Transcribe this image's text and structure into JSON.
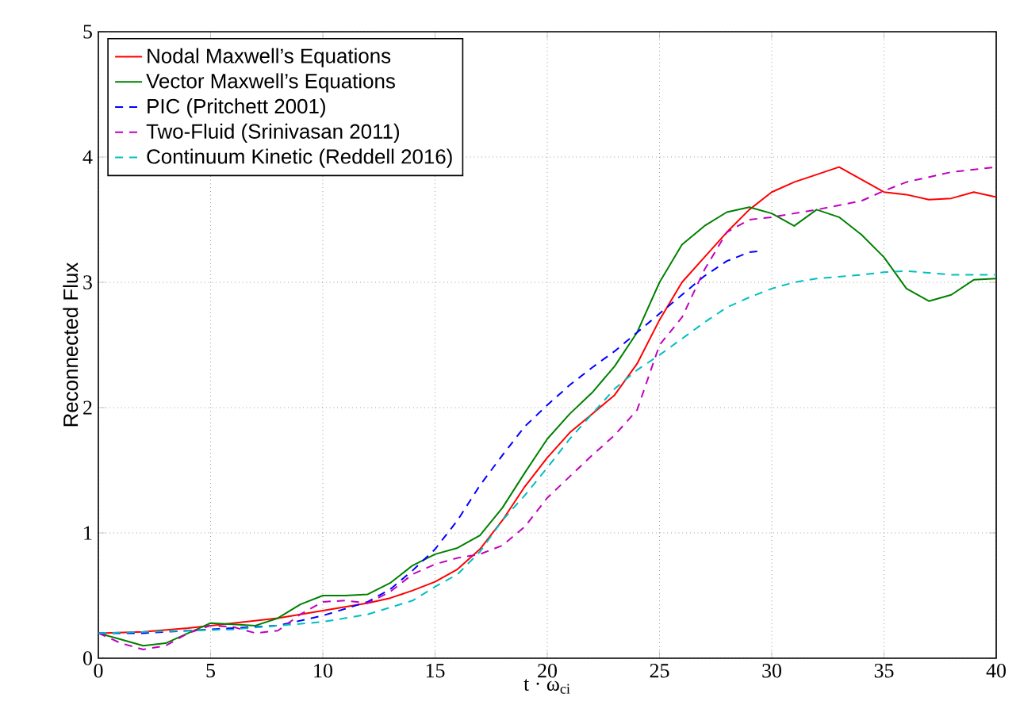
{
  "chart_data": {
    "type": "line",
    "xlabel": "t · ω$_{ci}$",
    "ylabel": "Reconnected Flux",
    "xlim": [
      0,
      40
    ],
    "ylim": [
      0,
      5
    ],
    "xticks": [
      0,
      5,
      10,
      15,
      20,
      25,
      30,
      35,
      40
    ],
    "yticks": [
      0,
      1,
      2,
      3,
      4,
      5
    ],
    "grid": true,
    "legend": "top left",
    "marker": "none",
    "series": [
      {
        "name": "Nodal Maxwell’s Equations",
        "color": "#ff0000",
        "line_style": "solid",
        "x": [
          0,
          2,
          4,
          6,
          8,
          10,
          12,
          13,
          14,
          15,
          16,
          17,
          18,
          19,
          20,
          21,
          22,
          23,
          24,
          25,
          26,
          27,
          28,
          29,
          30,
          31,
          32,
          33,
          34,
          35,
          36,
          37,
          38,
          39,
          40
        ],
        "values": [
          0.2,
          0.21,
          0.24,
          0.28,
          0.32,
          0.38,
          0.44,
          0.48,
          0.54,
          0.61,
          0.71,
          0.87,
          1.1,
          1.37,
          1.6,
          1.8,
          1.95,
          2.1,
          2.35,
          2.7,
          3.0,
          3.2,
          3.4,
          3.58,
          3.72,
          3.8,
          3.86,
          3.92,
          3.82,
          3.72,
          3.7,
          3.66,
          3.67,
          3.72,
          3.68
        ]
      },
      {
        "name": "Vector Maxwell’s Equations",
        "color": "#008000",
        "line_style": "solid",
        "x": [
          0,
          1,
          2,
          3,
          4,
          5,
          6,
          7,
          8,
          9,
          10,
          11,
          12,
          13,
          14,
          15,
          16,
          17,
          18,
          19,
          20,
          21,
          22,
          23,
          24,
          25,
          26,
          27,
          28,
          29,
          30,
          31,
          32,
          33,
          34,
          35,
          36,
          37,
          38,
          39,
          40
        ],
        "values": [
          0.2,
          0.15,
          0.1,
          0.12,
          0.2,
          0.28,
          0.27,
          0.26,
          0.32,
          0.43,
          0.5,
          0.5,
          0.51,
          0.6,
          0.74,
          0.83,
          0.88,
          0.98,
          1.2,
          1.48,
          1.75,
          1.95,
          2.12,
          2.33,
          2.6,
          3.0,
          3.3,
          3.45,
          3.56,
          3.6,
          3.55,
          3.45,
          3.58,
          3.52,
          3.38,
          3.2,
          2.95,
          2.85,
          2.9,
          3.02,
          3.03
        ]
      },
      {
        "name": "PIC (Pritchett 2001)",
        "color": "#0000ff",
        "line_style": "dashed",
        "x": [
          0,
          2,
          4,
          6,
          8,
          10,
          12,
          13,
          14,
          15,
          16,
          17,
          18,
          19,
          20,
          21,
          22,
          23,
          24,
          25,
          26,
          27,
          28,
          29,
          29.5
        ],
        "values": [
          0.2,
          0.2,
          0.22,
          0.24,
          0.26,
          0.34,
          0.45,
          0.55,
          0.7,
          0.87,
          1.1,
          1.38,
          1.62,
          1.85,
          2.02,
          2.18,
          2.32,
          2.45,
          2.6,
          2.75,
          2.9,
          3.05,
          3.17,
          3.24,
          3.25
        ]
      },
      {
        "name": "Two-Fluid (Srinivasan 2011)",
        "color": "#bf00bf",
        "line_style": "dashed",
        "x": [
          0,
          1,
          2,
          3,
          4,
          5,
          6,
          7,
          8,
          9,
          10,
          11,
          12,
          13,
          14,
          15,
          16,
          17,
          18,
          19,
          20,
          21,
          22,
          23,
          24,
          25,
          26,
          27,
          28,
          29,
          30,
          32,
          34,
          35,
          36,
          38,
          40
        ],
        "values": [
          0.2,
          0.12,
          0.07,
          0.1,
          0.2,
          0.26,
          0.25,
          0.2,
          0.22,
          0.35,
          0.45,
          0.46,
          0.44,
          0.53,
          0.67,
          0.75,
          0.8,
          0.83,
          0.9,
          1.05,
          1.28,
          1.45,
          1.62,
          1.78,
          1.98,
          2.5,
          2.72,
          3.1,
          3.4,
          3.5,
          3.52,
          3.58,
          3.65,
          3.73,
          3.8,
          3.88,
          3.92
        ]
      },
      {
        "name": "Continuum Kinetic (Reddell 2016)",
        "color": "#00bfbf",
        "line_style": "dashed",
        "x": [
          0,
          2,
          4,
          6,
          8,
          10,
          12,
          14,
          15,
          16,
          17,
          18,
          19,
          20,
          21,
          22,
          23,
          24,
          25,
          26,
          27,
          28,
          29,
          30,
          31,
          32,
          34,
          35,
          36,
          38,
          40
        ],
        "values": [
          0.2,
          0.21,
          0.22,
          0.23,
          0.26,
          0.29,
          0.35,
          0.46,
          0.57,
          0.67,
          0.85,
          1.1,
          1.3,
          1.52,
          1.75,
          1.95,
          2.15,
          2.3,
          2.42,
          2.55,
          2.68,
          2.8,
          2.88,
          2.95,
          3.0,
          3.03,
          3.06,
          3.08,
          3.09,
          3.06,
          3.06
        ]
      }
    ]
  }
}
